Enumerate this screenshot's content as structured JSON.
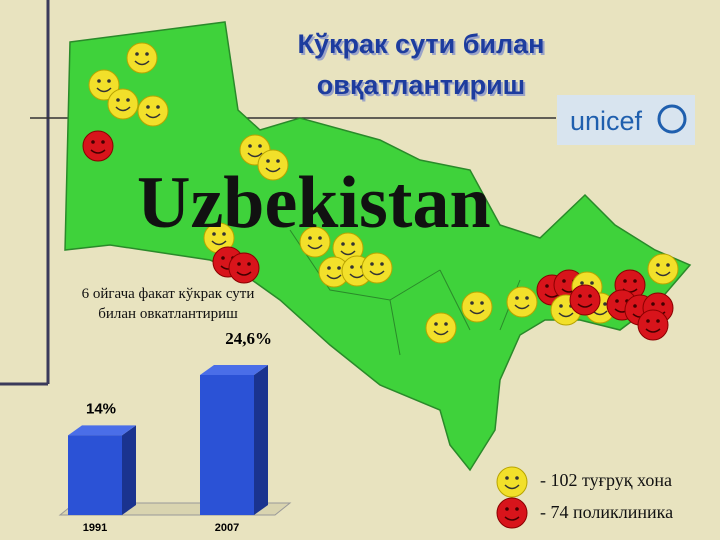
{
  "title_lines": [
    "Кўкрак сути билан",
    "овқатлантириш"
  ],
  "logo": "unicef",
  "country": "Uzbekistan",
  "legend": [
    "- 102 туғруқ хона",
    "- 74 поликлиника"
  ],
  "chart_data": {
    "type": "bar",
    "annotation_lines": [
      "6 ойгача факат кўкрак сути",
      "билан овкатлантириш"
    ],
    "categories": [
      "1991",
      "2007"
    ],
    "values": [
      14,
      24.6
    ],
    "value_labels": [
      "14%",
      "24,6%"
    ],
    "color": "#2b52d6"
  }
}
